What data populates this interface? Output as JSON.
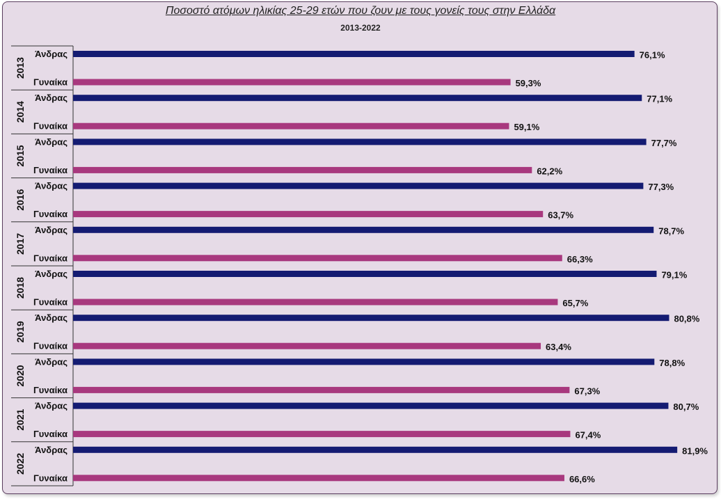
{
  "chart_data": {
    "type": "bar",
    "orientation": "horizontal",
    "title": "Ποσοστό ατόμων ηλικίας 25-29 ετών που ζουν με τους γονείς τους στην Ελλάδα",
    "subtitle": "2013-2022",
    "categories": [
      "2013",
      "2014",
      "2015",
      "2016",
      "2017",
      "2018",
      "2019",
      "2020",
      "2021",
      "2022"
    ],
    "subcategories": [
      "Άνδρας",
      "Γυναίκα"
    ],
    "series": [
      {
        "name": "Άνδρας",
        "color": "#141b72",
        "values": [
          76.1,
          77.1,
          77.7,
          77.3,
          78.7,
          79.1,
          80.8,
          78.8,
          80.7,
          81.9
        ],
        "labels": [
          "76,1%",
          "77,1%",
          "77,7%",
          "77,3%",
          "78,7%",
          "79,1%",
          "80,8%",
          "78,8%",
          "80,7%",
          "81,9%"
        ]
      },
      {
        "name": "Γυναίκα",
        "color": "#a8387e",
        "values": [
          59.3,
          59.1,
          62.2,
          63.7,
          66.3,
          65.7,
          63.4,
          67.3,
          67.4,
          66.6
        ],
        "labels": [
          "59,3%",
          "59,1%",
          "62,2%",
          "63,7%",
          "66,3%",
          "65,7%",
          "63,4%",
          "67,3%",
          "67,4%",
          "66,6%"
        ]
      }
    ],
    "xlim": [
      0,
      100
    ],
    "grid": false,
    "legend": "none"
  }
}
